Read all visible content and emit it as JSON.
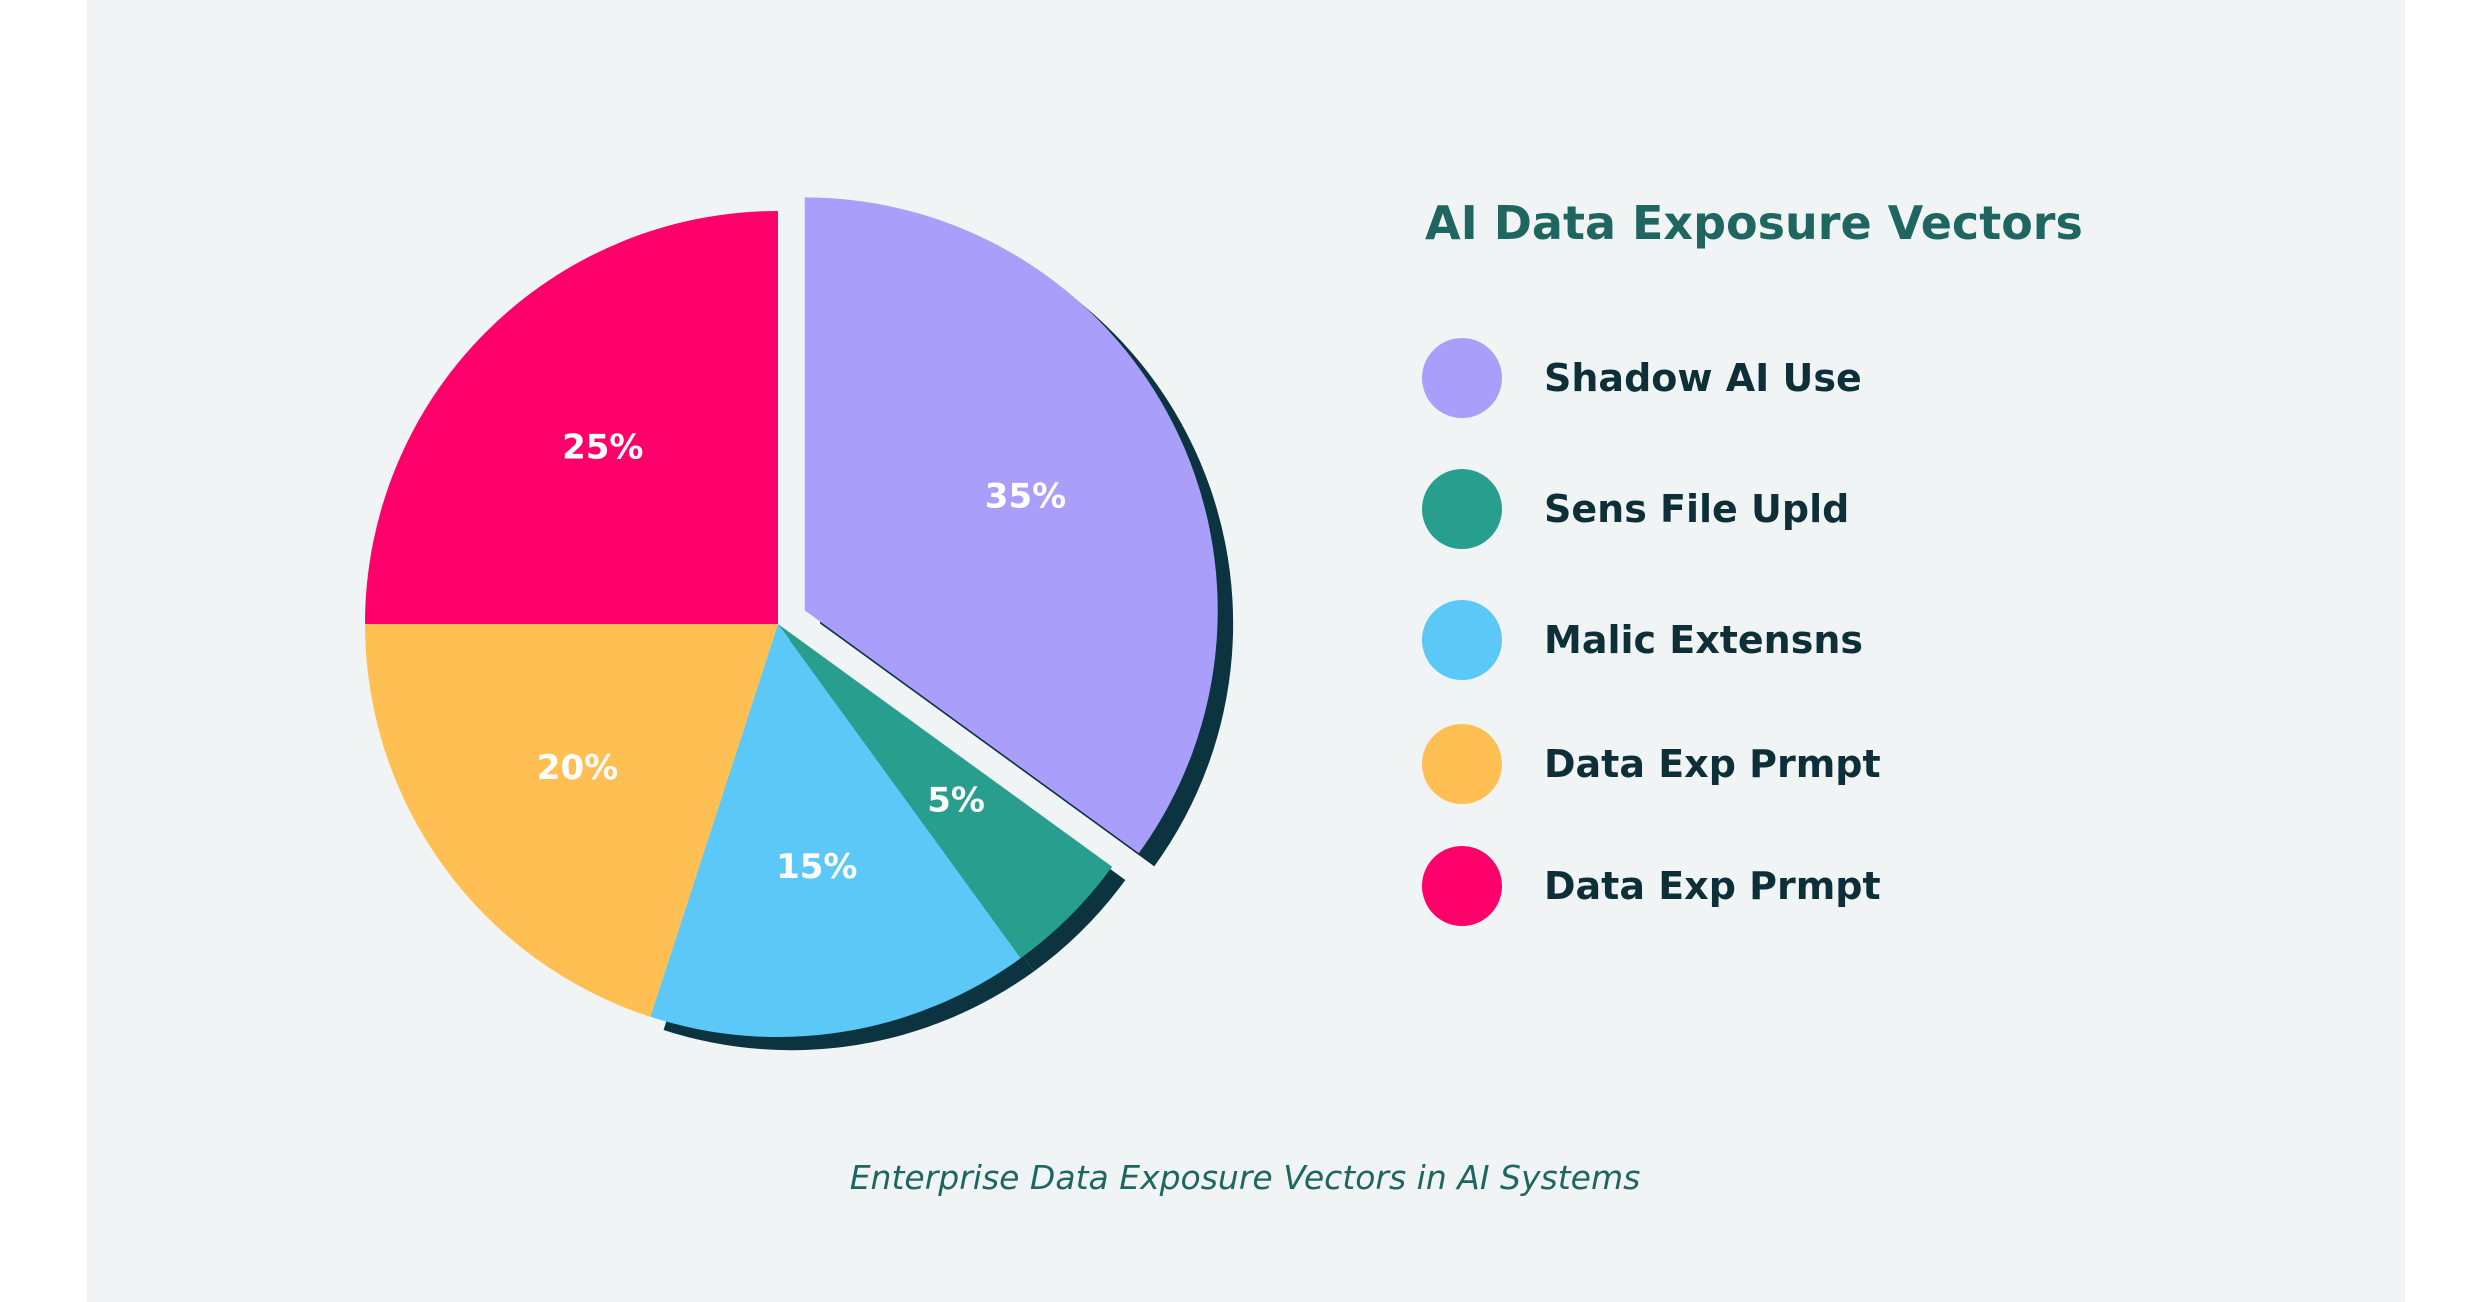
{
  "chart_data": {
    "type": "pie",
    "title": "AI Data Exposure Vectors",
    "caption": "Enterprise Data Exposure Vectors in AI Systems",
    "slices": [
      {
        "label": "Shadow AI Use",
        "value": 35,
        "display": "35%",
        "color": "#a99ffb"
      },
      {
        "label": "Sens File Upld",
        "value": 5,
        "display": "5%",
        "color": "#279e8e"
      },
      {
        "label": "Malic Extensns",
        "value": 15,
        "display": "15%",
        "color": "#5cc8f8"
      },
      {
        "label": "Data Exp Prmpt",
        "value": 20,
        "display": "20%",
        "color": "#ffbf52"
      },
      {
        "label": "Data Exp Prmpt",
        "value": 25,
        "display": "25%",
        "color": "#ff006a"
      }
    ],
    "legend_position": "right"
  },
  "colors": {
    "background": "#f0f4f5",
    "shadow": "#0b3340",
    "title": "#1f6660",
    "legend_text": "#0e2f38"
  }
}
